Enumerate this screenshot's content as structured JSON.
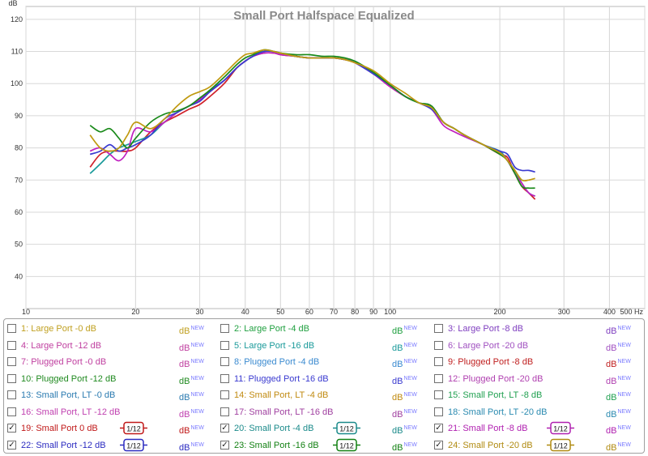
{
  "chart_data": {
    "type": "line",
    "title": "Small Port Halfspace Equalized",
    "ylabel": "dB",
    "xlabel": "Hz",
    "xscale": "log",
    "xlim": [
      10,
      500
    ],
    "ylim": [
      30,
      124
    ],
    "x_ticks": [
      10,
      20,
      30,
      40,
      50,
      60,
      70,
      80,
      90,
      100,
      200,
      300,
      400,
      500
    ],
    "x_tick_labels": [
      "10",
      "20",
      "30",
      "40",
      "50",
      "60",
      "70",
      "80",
      "90",
      "100",
      "200",
      "300",
      "400",
      "500 Hz"
    ],
    "y_ticks": [
      40,
      50,
      60,
      70,
      80,
      90,
      100,
      110,
      120
    ],
    "grid": true,
    "series": [
      {
        "name": "19: Small Port 0 dB",
        "color": "#d0202a",
        "x": [
          15,
          16,
          17,
          18,
          19,
          20,
          22,
          24,
          26,
          28,
          30,
          32,
          35,
          38,
          40,
          42,
          45,
          48,
          50,
          55,
          60,
          65,
          70,
          75,
          80,
          90,
          100,
          110,
          120,
          130,
          140,
          150,
          160,
          180,
          200,
          210,
          220,
          230,
          240,
          250
        ],
        "y": [
          74,
          78,
          79,
          79,
          79,
          80,
          85,
          88,
          90,
          92,
          93.5,
          96,
          100,
          105,
          107,
          108.5,
          109.5,
          109.5,
          109,
          108.5,
          108,
          108,
          108,
          107.5,
          106.5,
          103,
          99,
          96,
          94,
          93,
          88,
          86,
          84,
          81,
          78,
          77,
          72,
          68,
          66,
          64
        ]
      },
      {
        "name": "20: Small Port -4 dB",
        "color": "#1a9a9a",
        "x": [
          15,
          16,
          17,
          18,
          19,
          20,
          22,
          24,
          26,
          28,
          30,
          32,
          35,
          38,
          40,
          42,
          45,
          48,
          50,
          55,
          60,
          65,
          70,
          75,
          80,
          90,
          100,
          110,
          120,
          130,
          140,
          150,
          160,
          180,
          200,
          210,
          220,
          230,
          240,
          250
        ],
        "y": [
          72,
          75,
          78,
          80,
          81,
          82,
          84,
          88,
          91,
          93,
          95,
          98,
          101,
          105,
          107,
          108.5,
          110,
          110,
          109.5,
          108.5,
          108,
          108,
          108,
          107.5,
          107,
          103.5,
          99.5,
          96,
          94,
          93,
          88,
          86,
          84,
          81,
          79,
          76,
          73,
          69,
          66,
          65
        ]
      },
      {
        "name": "21: Small Port -8 dB",
        "color": "#c020c0",
        "x": [
          15,
          16,
          17,
          18,
          19,
          20,
          22,
          24,
          26,
          28,
          30,
          32,
          35,
          38,
          40,
          42,
          45,
          48,
          50,
          55,
          60,
          65,
          70,
          75,
          80,
          90,
          100,
          110,
          120,
          130,
          140,
          150,
          160,
          180,
          200,
          210,
          220,
          230,
          240,
          250
        ],
        "y": [
          79,
          80,
          78,
          76,
          79,
          86,
          85,
          88,
          91,
          93,
          95,
          97.5,
          101,
          105,
          107,
          108.5,
          109.5,
          109.5,
          109,
          108.5,
          108,
          108,
          108,
          107.5,
          106.5,
          103,
          99,
          96,
          94,
          92,
          87,
          85,
          83.5,
          81,
          78.5,
          76,
          72,
          69,
          66,
          65
        ]
      },
      {
        "name": "22: Small Port -12 dB",
        "color": "#3a3ad0",
        "x": [
          15,
          16,
          17,
          18,
          19,
          20,
          22,
          24,
          26,
          28,
          30,
          32,
          35,
          38,
          40,
          42,
          45,
          48,
          50,
          55,
          60,
          65,
          70,
          75,
          80,
          90,
          100,
          110,
          120,
          130,
          140,
          150,
          160,
          180,
          200,
          210,
          220,
          230,
          240,
          250
        ],
        "y": [
          78,
          79,
          81,
          79,
          80,
          81,
          84,
          89,
          91,
          93,
          94.5,
          97.5,
          101,
          105,
          107,
          108.5,
          110,
          110,
          109.5,
          108.5,
          108,
          108,
          108,
          107.5,
          106.5,
          103,
          99.5,
          96,
          94,
          92,
          88,
          86,
          84,
          81,
          79,
          78,
          74,
          73,
          73,
          72.5
        ]
      },
      {
        "name": "23: Small Port -16 dB",
        "color": "#1a8a1a",
        "x": [
          15,
          16,
          17,
          18,
          19,
          20,
          22,
          24,
          26,
          28,
          30,
          32,
          35,
          38,
          40,
          42,
          45,
          48,
          50,
          55,
          60,
          65,
          70,
          75,
          80,
          90,
          100,
          110,
          120,
          130,
          140,
          150,
          160,
          180,
          200,
          210,
          220,
          230,
          240,
          250
        ],
        "y": [
          87,
          85,
          86,
          83,
          80,
          83,
          88,
          90.5,
          91.5,
          93,
          95.5,
          98,
          102,
          106,
          108,
          109,
          110.5,
          110,
          109.5,
          109,
          109,
          108.5,
          108.5,
          108,
          107,
          103.5,
          99.5,
          96,
          94,
          93,
          88,
          86,
          84,
          81,
          78,
          76,
          72,
          68,
          67.5,
          67.5
        ]
      },
      {
        "name": "24: Small Port -20 dB",
        "color": "#c09a10",
        "x": [
          15,
          16,
          17,
          18,
          19,
          20,
          22,
          24,
          26,
          28,
          30,
          32,
          35,
          38,
          40,
          42,
          45,
          48,
          50,
          55,
          60,
          65,
          70,
          75,
          80,
          90,
          100,
          110,
          120,
          130,
          140,
          150,
          160,
          180,
          200,
          210,
          220,
          230,
          240,
          250
        ],
        "y": [
          84,
          80,
          79,
          80,
          84,
          88,
          86,
          89,
          93,
          96,
          97.5,
          99,
          103,
          107,
          109,
          109.5,
          110.5,
          110,
          109.5,
          108.5,
          108,
          108,
          108,
          107.5,
          106.5,
          104,
          100,
          97,
          94,
          92.5,
          88,
          86,
          84,
          81,
          78.5,
          76,
          73,
          70,
          70,
          70.5
        ]
      }
    ]
  },
  "legend": {
    "db_label": "dB",
    "new_label": "NEW",
    "smooth_label": "1/12",
    "items": [
      {
        "label": "1: Large Port -0 dB",
        "color": "#c0a020",
        "checked": false,
        "smooth": false
      },
      {
        "label": "2: Large Port -4 dB",
        "color": "#20a040",
        "checked": false,
        "smooth": false
      },
      {
        "label": "3: Large Port -8 dB",
        "color": "#8040c0",
        "checked": false,
        "smooth": false
      },
      {
        "label": "4: Large Port -12 dB",
        "color": "#c040a0",
        "checked": false,
        "smooth": false
      },
      {
        "label": "5: Large Port -16 dB",
        "color": "#1a9a9a",
        "checked": false,
        "smooth": false
      },
      {
        "label": "6: Large Port -20 dB",
        "color": "#a050c0",
        "checked": false,
        "smooth": false
      },
      {
        "label": "7: Plugged Port -0 dB",
        "color": "#c040a0",
        "checked": false,
        "smooth": false
      },
      {
        "label": "8: Plugged Port -4 dB",
        "color": "#3a8ad0",
        "checked": false,
        "smooth": false
      },
      {
        "label": "9: Plugged Port -8 dB",
        "color": "#c02020",
        "checked": false,
        "smooth": false
      },
      {
        "label": "10: Plugged Port -12 dB",
        "color": "#208a20",
        "checked": false,
        "smooth": false
      },
      {
        "label": "11: Plugged Port -16 dB",
        "color": "#3a3ad0",
        "checked": false,
        "smooth": false
      },
      {
        "label": "12: Plugged Port -20 dB",
        "color": "#b040b0",
        "checked": false,
        "smooth": false
      },
      {
        "label": "13: Small Port, LT -0 dB",
        "color": "#2a7ab0",
        "checked": false,
        "smooth": false
      },
      {
        "label": "14: Small Port, LT -4 dB",
        "color": "#c08a10",
        "checked": false,
        "smooth": false
      },
      {
        "label": "15: Small Port, LT -8 dB",
        "color": "#20a050",
        "checked": false,
        "smooth": false
      },
      {
        "label": "16: Small Port, LT -12 dB",
        "color": "#c040b0",
        "checked": false,
        "smooth": false
      },
      {
        "label": "17: Small Port, LT -16 dB",
        "color": "#a040a0",
        "checked": false,
        "smooth": false
      },
      {
        "label": "18: Small Port, LT -20 dB",
        "color": "#2a8ab0",
        "checked": false,
        "smooth": false
      },
      {
        "label": "19: Small Port 0 dB",
        "color": "#c01818",
        "checked": true,
        "smooth": true
      },
      {
        "label": "20: Small Port -4 dB",
        "color": "#1a8a8a",
        "checked": true,
        "smooth": true
      },
      {
        "label": "21: Small Port -8 dB",
        "color": "#b020b0",
        "checked": true,
        "smooth": true
      },
      {
        "label": "22: Small Port -12 dB",
        "color": "#2a2ac0",
        "checked": true,
        "smooth": true
      },
      {
        "label": "23: Small Port -16 dB",
        "color": "#128012",
        "checked": true,
        "smooth": true
      },
      {
        "label": "24: Small Port -20 dB",
        "color": "#b08a10",
        "checked": true,
        "smooth": true
      }
    ]
  }
}
